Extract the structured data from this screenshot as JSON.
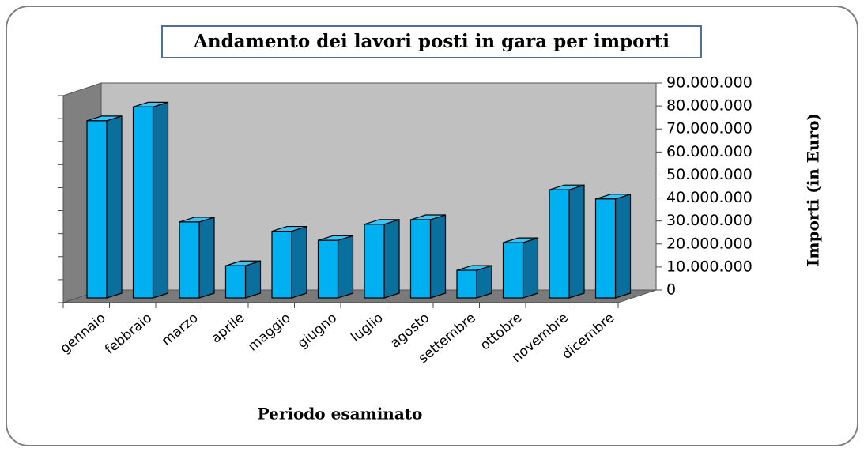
{
  "chart_data": {
    "type": "bar3d",
    "title": "Andamento dei lavori posti in gara per importi",
    "x_label": "Periodo esaminato",
    "y_label": "Importi (in Euro)",
    "categories": [
      "gennaio",
      "febbraio",
      "marzo",
      "aprile",
      "maggio",
      "giugno",
      "luglio",
      "agosto",
      "settembre",
      "ottobre",
      "novembre",
      "dicembre"
    ],
    "values": [
      77000000,
      83000000,
      33000000,
      14000000,
      29000000,
      25000000,
      32000000,
      34000000,
      12000000,
      24000000,
      47000000,
      43000000
    ],
    "color": "#00b0f0",
    "ylim": [
      0,
      90000000
    ],
    "yticks": [
      0,
      {
        "value": 10000000,
        "label": "10.000.000"
      },
      {
        "value": 20000000,
        "label": "20.000.000"
      },
      {
        "value": 30000000,
        "label": "30.000.000"
      },
      {
        "value": 40000000,
        "label": "40.000.000"
      },
      {
        "value": 50000000,
        "label": "50.000.000"
      },
      {
        "value": 60000000,
        "label": "60.000.000"
      },
      {
        "value": 70000000,
        "label": "70.000.000"
      },
      {
        "value": 80000000,
        "label": "80.000.000"
      },
      {
        "value": 90000000,
        "label": "90.000.000"
      }
    ]
  }
}
